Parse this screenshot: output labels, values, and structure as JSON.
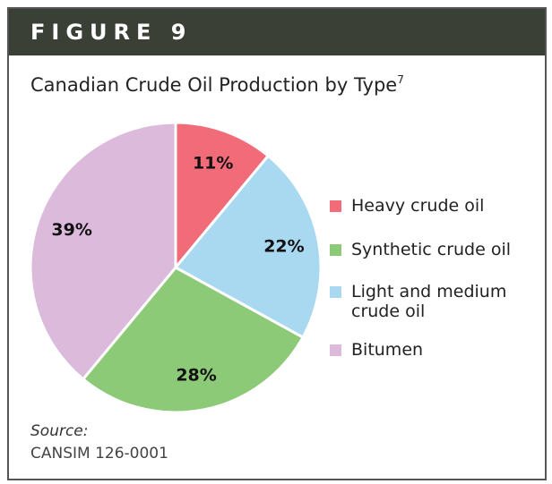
{
  "figure_label": "FIGURE 9",
  "chart_data": {
    "type": "pie",
    "title": "Canadian Crude Oil Production by Type",
    "title_superscript": "7",
    "categories": [
      "Heavy crude oil",
      "Light and medium crude oil",
      "Synthetic crude oil",
      "Bitumen"
    ],
    "values": [
      11,
      22,
      28,
      39
    ],
    "value_labels": [
      "11%",
      "22%",
      "28%",
      "39%"
    ],
    "colors": [
      "#f26b78",
      "#a9d8f1",
      "#8dca77",
      "#dbbadb"
    ],
    "legend": "right"
  },
  "source": {
    "label": "Source:",
    "text": "CANSIM 126-0001"
  }
}
